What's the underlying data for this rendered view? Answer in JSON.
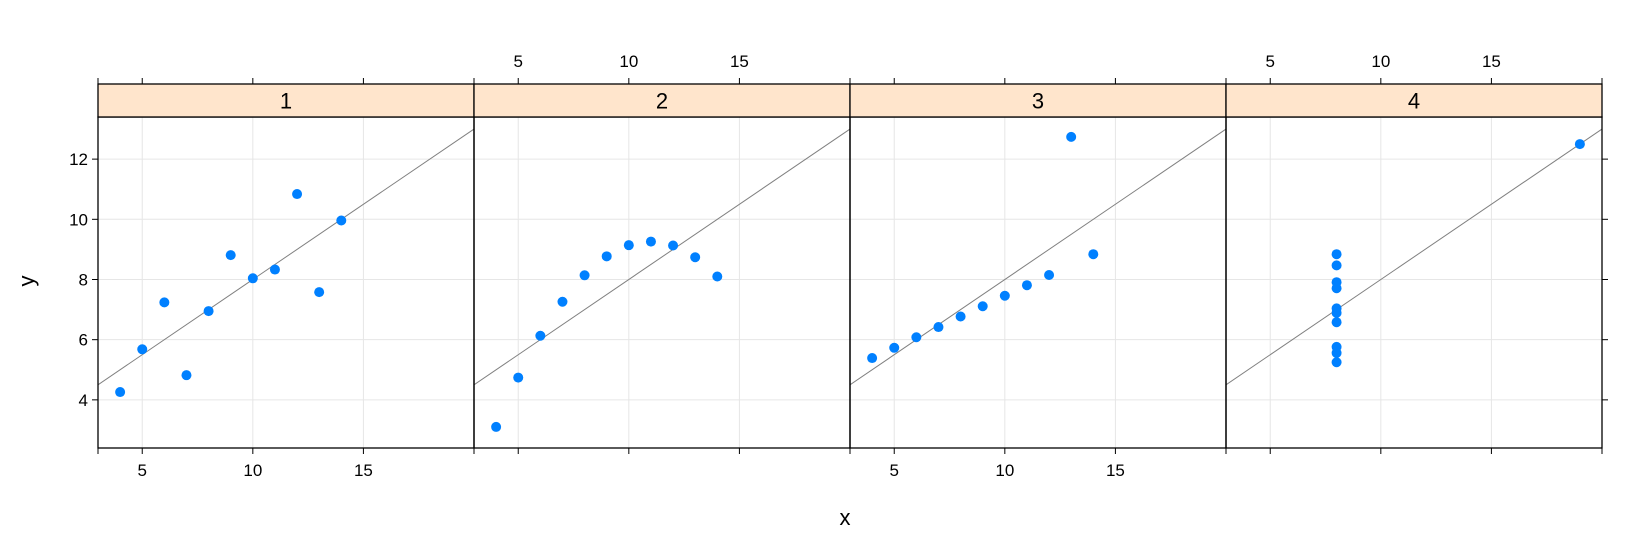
{
  "chart_data": {
    "type": "scatter",
    "xlabel": "x",
    "ylabel": "y",
    "xlim": [
      3,
      20
    ],
    "ylim": [
      2.4,
      13.4
    ],
    "x_ticks": [
      5,
      10,
      15
    ],
    "y_ticks": [
      4,
      6,
      8,
      10,
      12
    ],
    "grid": true,
    "colors": {
      "point": "#0080ff",
      "fit_line": "#808080",
      "strip": "#ffe5cc",
      "grid": "#e6e6e6"
    },
    "fit_line": {
      "intercept": 3.0,
      "slope": 0.5
    },
    "panels": [
      {
        "label": "1",
        "x": [
          10,
          8,
          13,
          9,
          11,
          14,
          6,
          4,
          12,
          7,
          5
        ],
        "y": [
          8.04,
          6.95,
          7.58,
          8.81,
          8.33,
          9.96,
          7.24,
          4.26,
          10.84,
          4.82,
          5.68
        ]
      },
      {
        "label": "2",
        "x": [
          10,
          8,
          13,
          9,
          11,
          14,
          6,
          4,
          12,
          7,
          5
        ],
        "y": [
          9.14,
          8.14,
          8.74,
          8.77,
          9.26,
          8.1,
          6.13,
          3.1,
          9.13,
          7.26,
          4.74
        ]
      },
      {
        "label": "3",
        "x": [
          10,
          8,
          13,
          9,
          11,
          14,
          6,
          4,
          12,
          7,
          5
        ],
        "y": [
          7.46,
          6.77,
          12.74,
          7.11,
          7.81,
          8.84,
          6.08,
          5.39,
          8.15,
          6.42,
          5.73
        ]
      },
      {
        "label": "4",
        "x": [
          8,
          8,
          8,
          8,
          8,
          8,
          8,
          19,
          8,
          8,
          8
        ],
        "y": [
          6.58,
          5.76,
          7.71,
          8.84,
          8.47,
          7.04,
          5.25,
          12.5,
          5.56,
          7.91,
          6.89
        ]
      }
    ]
  }
}
